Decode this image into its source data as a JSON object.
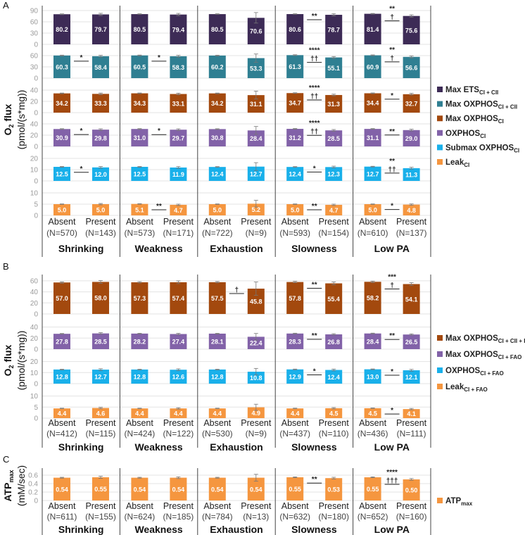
{
  "chart_data": [
    {
      "panel": "A",
      "type": "bar",
      "ylabel": {
        "main": "O",
        "sub": "2",
        "rest": " flux",
        "line2": "(pmol/(s*mg))"
      },
      "decimals": 1,
      "groups": [
        "Shrinking",
        "Weakness",
        "Exhaustion",
        "Slowness",
        "Low PA"
      ],
      "categories": [
        "Absent",
        "Present"
      ],
      "n": [
        [
          "(N=570)",
          "(N=143)"
        ],
        [
          "(N=573)",
          "(N=171)"
        ],
        [
          "(N=722)",
          "(N=9)"
        ],
        [
          "(N=593)",
          "(N=154)"
        ],
        [
          "(N=610)",
          "(N=137)"
        ]
      ],
      "rows": [
        {
          "name": "Max ETS",
          "sub": "CI + CII",
          "color": "#3d2b56",
          "ticks": [
            90,
            60,
            30,
            0
          ],
          "values": [
            [
              80.2,
              79.7
            ],
            [
              80.5,
              79.4
            ],
            [
              80.5,
              70.6
            ],
            [
              80.6,
              78.7
            ],
            [
              81.4,
              75.6
            ]
          ],
          "err": [
            [
              1,
              3
            ],
            [
              1,
              3
            ],
            [
              1,
              14
            ],
            [
              1,
              3
            ],
            [
              1,
              3
            ]
          ],
          "sig": [
            [],
            [],
            [],
            [
              "**"
            ],
            [
              "**",
              "†"
            ]
          ]
        },
        {
          "name": "Max OXPHOS",
          "sub": "CI + CII",
          "color": "#2f7f92",
          "ticks": [
            60,
            30,
            0
          ],
          "values": [
            [
              60.3,
              58.4
            ],
            [
              60.5,
              58.3
            ],
            [
              60.2,
              53.3
            ],
            [
              61.3,
              55.1
            ],
            [
              60.9,
              56.6
            ]
          ],
          "err": [
            [
              1,
              2.5
            ],
            [
              1,
              2.5
            ],
            [
              1,
              11
            ],
            [
              1,
              2.5
            ],
            [
              1,
              2.5
            ]
          ],
          "sig": [
            [
              "*"
            ],
            [
              "*"
            ],
            [],
            [
              "****",
              "††"
            ],
            [
              "**",
              "†"
            ]
          ]
        },
        {
          "name": "Max OXPHOS",
          "sub": "CI",
          "color": "#a3490e",
          "ticks": [
            40,
            20,
            0
          ],
          "values": [
            [
              34.2,
              33.3
            ],
            [
              34.3,
              33.1
            ],
            [
              34.2,
              31.1
            ],
            [
              34.7,
              31.3
            ],
            [
              34.4,
              32.7
            ]
          ],
          "err": [
            [
              0.6,
              1.5
            ],
            [
              0.6,
              1.5
            ],
            [
              0.6,
              7
            ],
            [
              0.6,
              1.5
            ],
            [
              0.6,
              1.5
            ]
          ],
          "sig": [
            [],
            [],
            [],
            [
              "****",
              "††"
            ],
            [
              "*"
            ]
          ]
        },
        {
          "name": "OXPHOS",
          "sub": "CI",
          "color": "#8262a8",
          "ticks": [
            40,
            20,
            0
          ],
          "values": [
            [
              30.9,
              29.8
            ],
            [
              31.0,
              29.7
            ],
            [
              30.8,
              28.4
            ],
            [
              31.2,
              28.5
            ],
            [
              31.1,
              29.0
            ]
          ],
          "err": [
            [
              0.6,
              1.5
            ],
            [
              0.6,
              1.5
            ],
            [
              0.6,
              7
            ],
            [
              0.6,
              1.5
            ],
            [
              0.6,
              1.5
            ]
          ],
          "sig": [
            [
              "*"
            ],
            [
              "*"
            ],
            [],
            [
              "****",
              "††"
            ],
            [
              "**"
            ]
          ]
        },
        {
          "name": "Submax OXPHOS",
          "sub": "CI",
          "color": "#19b0ea",
          "ticks": [
            20,
            10,
            0
          ],
          "values": [
            [
              12.5,
              12.0
            ],
            [
              12.5,
              11.9
            ],
            [
              12.4,
              12.7
            ],
            [
              12.4,
              12.3
            ],
            [
              12.7,
              11.3
            ]
          ],
          "err": [
            [
              0.3,
              0.8
            ],
            [
              0.3,
              0.8
            ],
            [
              0.3,
              3.5
            ],
            [
              0.3,
              0.8
            ],
            [
              0.3,
              0.8
            ]
          ],
          "sig": [
            [
              "*"
            ],
            [],
            [],
            [
              "*"
            ],
            [
              "**",
              "††"
            ]
          ]
        },
        {
          "name": "Leak",
          "sub": "CI",
          "color": "#f5963f",
          "ticks": [
            10,
            5,
            0
          ],
          "values": [
            [
              5.0,
              5.0
            ],
            [
              5.1,
              4.7
            ],
            [
              5.0,
              5.2
            ],
            [
              5.0,
              4.7
            ],
            [
              5.0,
              4.8
            ]
          ],
          "err": [
            [
              0.1,
              0.3
            ],
            [
              0.1,
              0.3
            ],
            [
              0.1,
              1.5
            ],
            [
              0.1,
              0.3
            ],
            [
              0.1,
              0.3
            ]
          ],
          "sig": [
            [],
            [
              "**"
            ],
            [],
            [
              "**"
            ],
            [
              "*"
            ]
          ]
        }
      ]
    },
    {
      "panel": "B",
      "type": "bar",
      "ylabel": {
        "main": "O",
        "sub": "2",
        "rest": " flux",
        "line2": "(pmol/(s*mg))"
      },
      "decimals": 1,
      "groups": [
        "Shrinking",
        "Weakness",
        "Exhaustion",
        "Slowness",
        "Low PA"
      ],
      "categories": [
        "Absent",
        "Present"
      ],
      "n": [
        [
          "(N=412)",
          "(N=115)"
        ],
        [
          "(N=424)",
          "(N=122)"
        ],
        [
          "(N=530)",
          "(N=9)"
        ],
        [
          "(N=437)",
          "(N=110)"
        ],
        [
          "(N=436)",
          "(N=111)"
        ]
      ],
      "rows": [
        {
          "name": "Max OXPHOS",
          "sub": "CI + CII + FAO",
          "color": "#a3490e",
          "ticks": [
            60,
            40,
            20,
            0
          ],
          "values": [
            [
              57.0,
              58.0
            ],
            [
              57.3,
              57.4
            ],
            [
              57.5,
              45.8
            ],
            [
              57.8,
              55.4
            ],
            [
              58.2,
              54.1
            ]
          ],
          "err": [
            [
              1.2,
              2.5
            ],
            [
              1.2,
              2.5
            ],
            [
              1.2,
              12
            ],
            [
              1.2,
              2.5
            ],
            [
              1.2,
              2.5
            ]
          ],
          "sig": [
            [],
            [],
            [
              "†"
            ],
            [
              "**"
            ],
            [
              "***",
              "†"
            ]
          ]
        },
        {
          "name": "Max OXPHOS",
          "sub": "CI + FAO",
          "color": "#8262a8",
          "ticks": [
            40,
            20,
            0
          ],
          "values": [
            [
              27.8,
              28.5
            ],
            [
              28.2,
              27.4
            ],
            [
              28.1,
              22.4
            ],
            [
              28.3,
              26.8
            ],
            [
              28.4,
              26.5
            ]
          ],
          "err": [
            [
              0.6,
              1.5
            ],
            [
              0.6,
              1.2
            ],
            [
              0.6,
              6
            ],
            [
              0.6,
              1.2
            ],
            [
              0.6,
              1.2
            ]
          ],
          "sig": [
            [],
            [],
            [],
            [
              "**"
            ],
            [
              "**"
            ]
          ]
        },
        {
          "name": "OXPHOS",
          "sub": "CI + FAO",
          "color": "#19b0ea",
          "ticks": [
            20,
            10,
            0
          ],
          "values": [
            [
              12.8,
              12.7
            ],
            [
              12.8,
              12.6
            ],
            [
              12.8,
              10.8
            ],
            [
              12.9,
              12.4
            ],
            [
              13.0,
              12.1
            ]
          ],
          "err": [
            [
              0.3,
              0.8
            ],
            [
              0.3,
              0.8
            ],
            [
              0.3,
              3
            ],
            [
              0.3,
              0.8
            ],
            [
              0.3,
              0.8
            ]
          ],
          "sig": [
            [],
            [],
            [],
            [
              "*"
            ],
            [
              "*"
            ]
          ]
        },
        {
          "name": "Leak",
          "sub": "CI + FAO",
          "color": "#f5963f",
          "ticks": [
            10,
            5,
            0
          ],
          "values": [
            [
              4.4,
              4.6
            ],
            [
              4.4,
              4.4
            ],
            [
              4.4,
              4.9
            ],
            [
              4.4,
              4.5
            ],
            [
              4.5,
              4.1
            ]
          ],
          "err": [
            [
              0.1,
              0.3
            ],
            [
              0.1,
              0.3
            ],
            [
              0.1,
              1.4
            ],
            [
              0.1,
              0.3
            ],
            [
              0.1,
              0.3
            ]
          ],
          "sig": [
            [],
            [],
            [],
            [],
            [
              "*"
            ]
          ]
        }
      ]
    },
    {
      "panel": "C",
      "type": "bar",
      "ylabel": {
        "main": "ATP",
        "sub": "max",
        "rest": "",
        "line2": "(mM/sec)"
      },
      "decimals": 2,
      "groups": [
        "Shrinking",
        "Weakness",
        "Exhaustion",
        "Slowness",
        "Low PA"
      ],
      "categories": [
        "Absent",
        "Present"
      ],
      "n": [
        [
          "(N=611)",
          "(N=155)"
        ],
        [
          "(N=624)",
          "(N=185)"
        ],
        [
          "(N=784)",
          "(N=13)"
        ],
        [
          "(N=632)",
          "(N=180)"
        ],
        [
          "(N=652)",
          "(N=160)"
        ]
      ],
      "rows": [
        {
          "name": "ATP",
          "sub": "max",
          "color": "#f5963f",
          "ticks": [
            0.6,
            0.4,
            0.2,
            0
          ],
          "values": [
            [
              0.54,
              0.55
            ],
            [
              0.54,
              0.54
            ],
            [
              0.54,
              0.54
            ],
            [
              0.55,
              0.53
            ],
            [
              0.55,
              0.5
            ]
          ],
          "err": [
            [
              0.01,
              0.025
            ],
            [
              0.01,
              0.02
            ],
            [
              0.01,
              0.08
            ],
            [
              0.01,
              0.02
            ],
            [
              0.01,
              0.02
            ]
          ],
          "sig": [
            [],
            [],
            [],
            [
              "**"
            ],
            [
              "****",
              "†††"
            ]
          ]
        }
      ]
    }
  ]
}
